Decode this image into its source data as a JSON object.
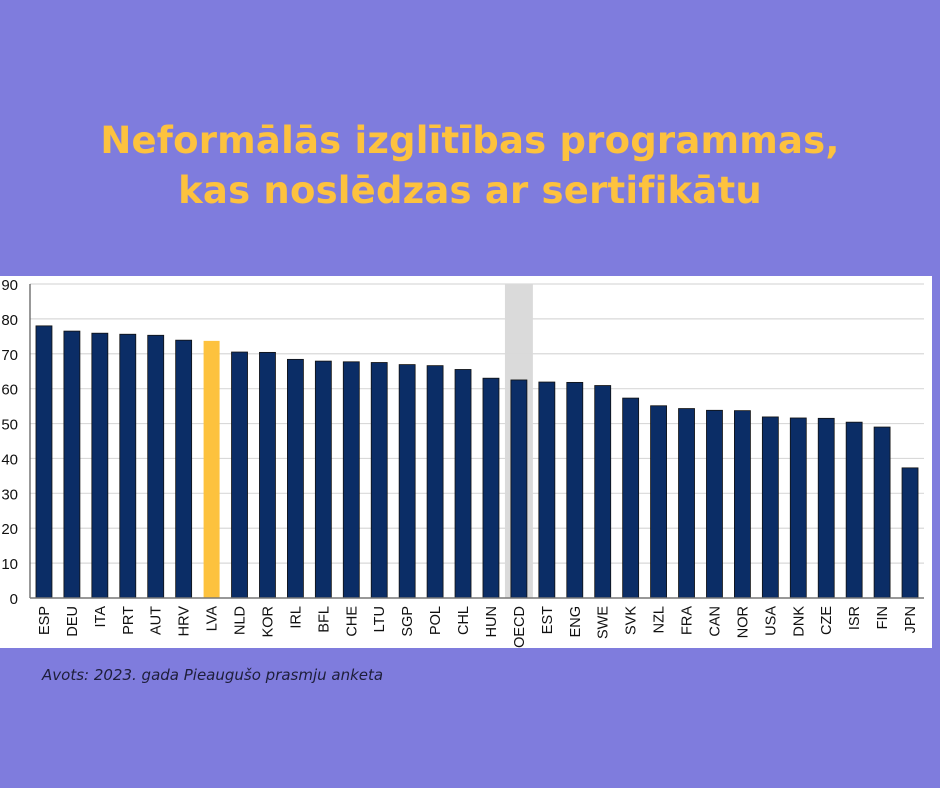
{
  "title": {
    "line1": "Neformālās izglītības programmas,",
    "line2": "kas noslēdzas ar sertifikātu"
  },
  "source": "Avots: 2023. gada Pieaugušo prasmju anketa",
  "colors": {
    "background": "#7f7cdd",
    "title": "#fdc23e",
    "bar": "#0b2d66",
    "highlight_bar": "#fdc23e",
    "oecd_band": "#dadada",
    "grid": "#d9d9d9"
  },
  "chart_data": {
    "type": "bar",
    "title": "Neformālās izglītības programmas, kas noslēdzas ar sertifikātu",
    "xlabel": "",
    "ylabel": "",
    "ylim": [
      0,
      90
    ],
    "yticks": [
      0,
      10,
      20,
      30,
      40,
      50,
      60,
      70,
      80,
      90
    ],
    "grid": true,
    "legend": "none",
    "highlight": "LVA",
    "reference_band": "OECD",
    "categories": [
      "ESP",
      "DEU",
      "ITA",
      "PRT",
      "AUT",
      "HRV",
      "LVA",
      "NLD",
      "KOR",
      "IRL",
      "BFL",
      "CHE",
      "LTU",
      "SGP",
      "POL",
      "CHL",
      "HUN",
      "OECD",
      "EST",
      "ENG",
      "SWE",
      "SVK",
      "NZL",
      "FRA",
      "CAN",
      "NOR",
      "USA",
      "DNK",
      "CZE",
      "ISR",
      "FIN",
      "JPN"
    ],
    "values": [
      78.0,
      76.5,
      75.9,
      75.6,
      75.3,
      73.9,
      73.7,
      70.5,
      70.4,
      68.4,
      67.9,
      67.7,
      67.5,
      66.9,
      66.6,
      65.5,
      63.0,
      62.5,
      61.9,
      61.8,
      60.9,
      57.3,
      55.1,
      54.3,
      53.8,
      53.7,
      51.9,
      51.6,
      51.5,
      50.4,
      49.0,
      37.3
    ]
  }
}
